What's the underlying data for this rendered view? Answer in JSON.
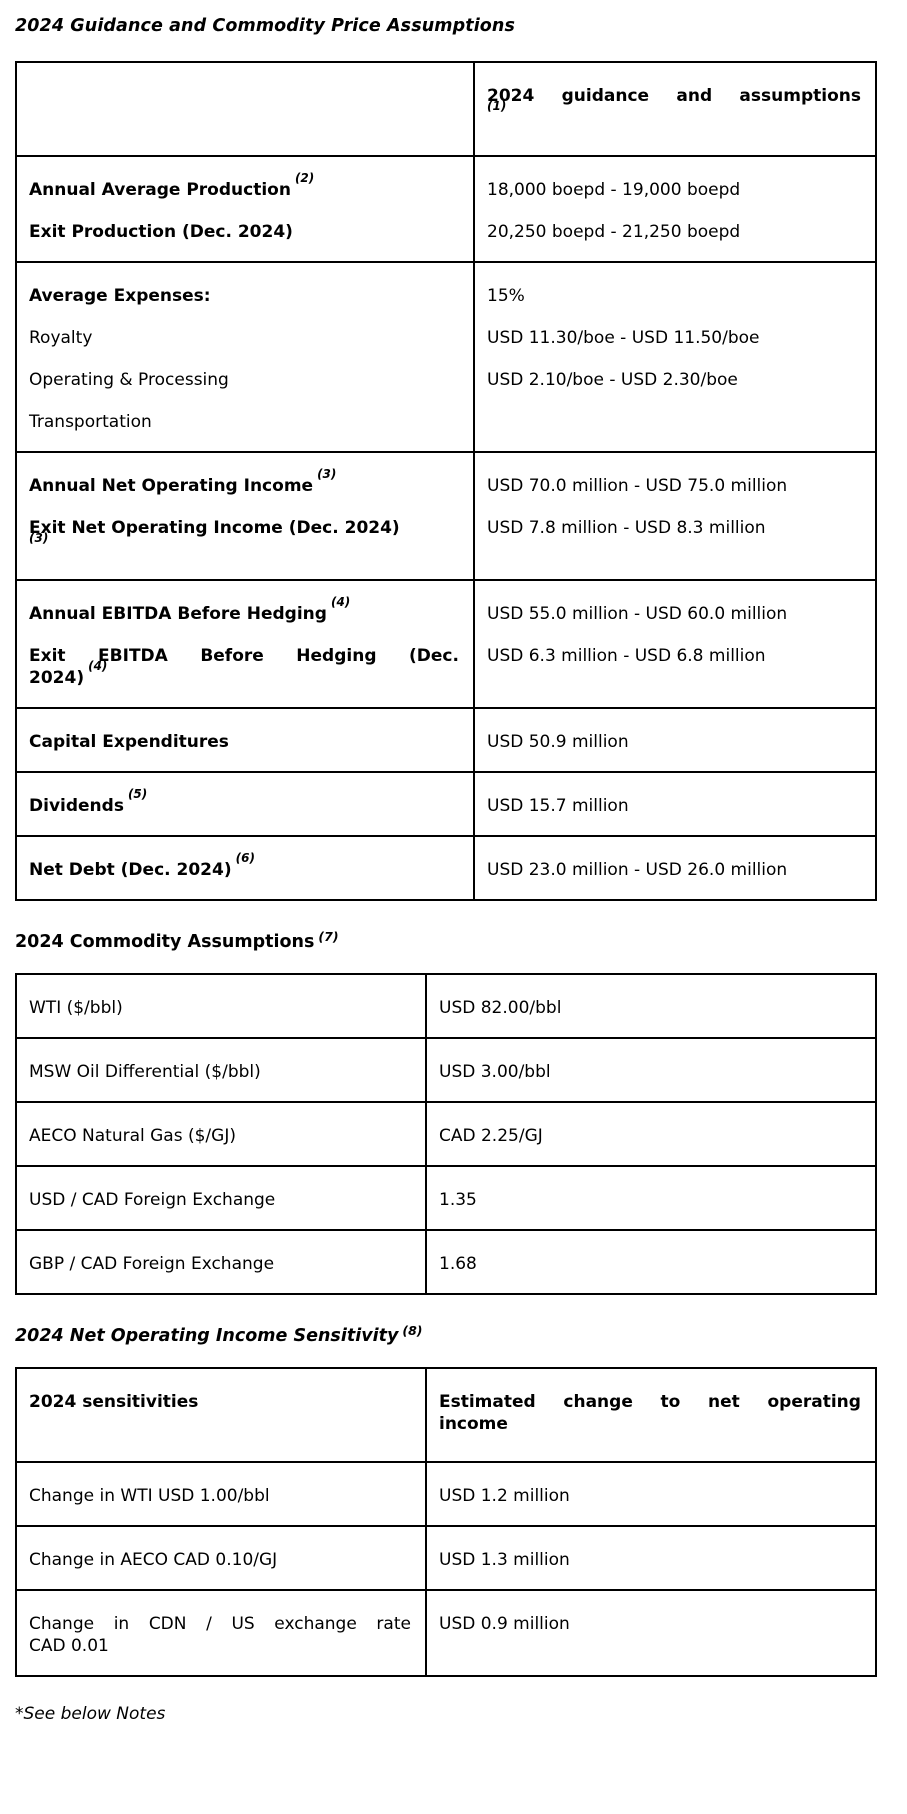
{
  "page": {
    "title": "2024 Guidance and Commodity Price Assumptions",
    "footnote": "*See below Notes"
  },
  "headings": {
    "commodity": {
      "text": "2024 Commodity Assumptions",
      "sup": "(7)"
    },
    "sensitivity": {
      "text": "2024 Net Operating Income Sensitivity",
      "sup": "(8)"
    }
  },
  "tables": {
    "guidance": {
      "header": {
        "left": [],
        "right": [
          {
            "bold": true,
            "lines": [
              {
                "spread": "2024 guidance and assumptions"
              },
              {
                "sup": "(1)"
              }
            ]
          }
        ]
      },
      "rows": [
        {
          "left": [
            {
              "bold": true,
              "lines": [
                {
                  "text": "Annual Average Production",
                  "sup": "(2)"
                }
              ]
            },
            {
              "bold": true,
              "lines": [
                {
                  "text": "Exit Production (Dec. 2024)"
                }
              ]
            }
          ],
          "right": [
            {
              "lines": [
                {
                  "text": "18,000 boepd - 19,000 boepd"
                }
              ]
            },
            {
              "lines": [
                {
                  "text": "20,250 boepd - 21,250 boepd"
                }
              ]
            }
          ]
        },
        {
          "left": [
            {
              "bold": true,
              "lines": [
                {
                  "text": "Average Expenses:"
                }
              ]
            },
            {
              "lines": [
                {
                  "text": "Royalty"
                }
              ]
            },
            {
              "lines": [
                {
                  "text": "Operating & Processing"
                }
              ]
            },
            {
              "lines": [
                {
                  "text": "Transportation"
                }
              ]
            }
          ],
          "right": [
            {
              "lines": [
                {
                  "text": "15%"
                }
              ]
            },
            {
              "lines": [
                {
                  "text": "USD 11.30/boe - USD 11.50/boe"
                }
              ]
            },
            {
              "lines": [
                {
                  "text": "USD 2.10/boe - USD 2.30/boe"
                }
              ]
            }
          ]
        },
        {
          "left": [
            {
              "bold": true,
              "lines": [
                {
                  "text": "Annual Net Operating Income",
                  "sup": "(3)"
                }
              ]
            },
            {
              "bold": true,
              "lines": [
                {
                  "text": "Exit Net Operating Income (Dec. 2024)"
                },
                {
                  "sup": "(3)"
                }
              ]
            }
          ],
          "right": [
            {
              "lines": [
                {
                  "text": "USD 70.0 million - USD 75.0 million"
                }
              ]
            },
            {
              "lines": [
                {
                  "text": "USD 7.8 million - USD 8.3 million"
                }
              ]
            }
          ]
        },
        {
          "left": [
            {
              "bold": true,
              "lines": [
                {
                  "text": "Annual EBITDA Before Hedging",
                  "sup": "(4)"
                }
              ]
            },
            {
              "bold": true,
              "lines": [
                {
                  "spread": "Exit EBITDA Before Hedging (Dec."
                },
                {
                  "text": "2024)",
                  "sup": "(4)"
                }
              ]
            }
          ],
          "right": [
            {
              "lines": [
                {
                  "text": "USD 55.0 million - USD 60.0 million"
                }
              ]
            },
            {
              "lines": [
                {
                  "text": "USD 6.3 million - USD 6.8 million"
                }
              ]
            }
          ]
        },
        {
          "left": [
            {
              "bold": true,
              "lines": [
                {
                  "text": "Capital Expenditures"
                }
              ]
            }
          ],
          "right": [
            {
              "lines": [
                {
                  "text": "USD 50.9 million"
                }
              ]
            }
          ]
        },
        {
          "left": [
            {
              "bold": true,
              "lines": [
                {
                  "text": "Dividends",
                  "sup": "(5)"
                }
              ]
            }
          ],
          "right": [
            {
              "lines": [
                {
                  "text": "USD 15.7 million"
                }
              ]
            }
          ]
        },
        {
          "left": [
            {
              "bold": true,
              "lines": [
                {
                  "text": "Net Debt (Dec. 2024)",
                  "sup": "(6)"
                }
              ]
            }
          ],
          "right": [
            {
              "lines": [
                {
                  "text": "USD 23.0 million - USD 26.0 million"
                }
              ]
            }
          ]
        }
      ]
    },
    "commodity": {
      "rows": [
        {
          "left": [
            {
              "lines": [
                {
                  "text": "WTI ($/bbl)"
                }
              ]
            }
          ],
          "right": [
            {
              "lines": [
                {
                  "text": "USD 82.00/bbl"
                }
              ]
            }
          ]
        },
        {
          "left": [
            {
              "lines": [
                {
                  "text": "MSW Oil Differential ($/bbl)"
                }
              ]
            }
          ],
          "right": [
            {
              "lines": [
                {
                  "text": "USD 3.00/bbl"
                }
              ]
            }
          ]
        },
        {
          "left": [
            {
              "lines": [
                {
                  "text": "AECO Natural Gas ($/GJ)"
                }
              ]
            }
          ],
          "right": [
            {
              "lines": [
                {
                  "text": "CAD 2.25/GJ"
                }
              ]
            }
          ]
        },
        {
          "left": [
            {
              "lines": [
                {
                  "text": "USD / CAD Foreign Exchange"
                }
              ]
            }
          ],
          "right": [
            {
              "lines": [
                {
                  "text": "1.35"
                }
              ]
            }
          ]
        },
        {
          "left": [
            {
              "lines": [
                {
                  "text": "GBP / CAD Foreign Exchange"
                }
              ]
            }
          ],
          "right": [
            {
              "lines": [
                {
                  "text": "1.68"
                }
              ]
            }
          ]
        }
      ]
    },
    "sensitivity": {
      "header": {
        "left": [
          {
            "bold": true,
            "lines": [
              {
                "text": "2024 sensitivities"
              }
            ]
          }
        ],
        "right": [
          {
            "bold": true,
            "lines": [
              {
                "spread": "Estimated change to net operating"
              },
              {
                "text": "income"
              }
            ]
          }
        ]
      },
      "rows": [
        {
          "left": [
            {
              "lines": [
                {
                  "text": "Change in WTI USD 1.00/bbl"
                }
              ]
            }
          ],
          "right": [
            {
              "lines": [
                {
                  "text": "USD 1.2 million"
                }
              ]
            }
          ]
        },
        {
          "left": [
            {
              "lines": [
                {
                  "text": "Change in AECO CAD 0.10/GJ"
                }
              ]
            }
          ],
          "right": [
            {
              "lines": [
                {
                  "text": "USD 1.3 million"
                }
              ]
            }
          ]
        },
        {
          "left": [
            {
              "lines": [
                {
                  "spread": "Change in CDN / US exchange rate"
                },
                {
                  "text": "CAD 0.01"
                }
              ]
            }
          ],
          "right": [
            {
              "lines": [
                {
                  "text": "USD 0.9 million"
                }
              ]
            }
          ]
        }
      ]
    }
  }
}
